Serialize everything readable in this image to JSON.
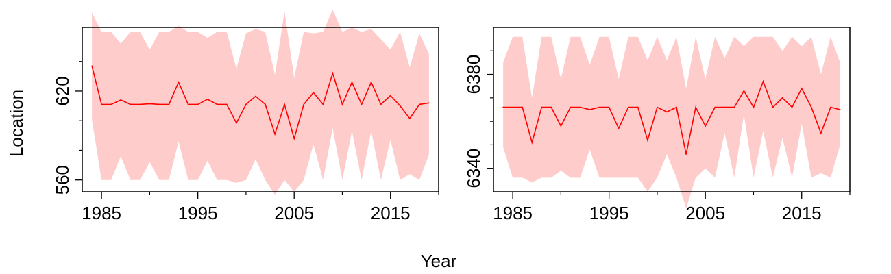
{
  "figure": {
    "ylabel": "Location",
    "xlabel": "Year"
  },
  "colors": {
    "line": "#ff0000",
    "band": "#ffcccc",
    "axis": "#000000"
  },
  "chart_data": [
    {
      "type": "area",
      "panel": "left",
      "xlim": [
        1983,
        2020
      ],
      "ylim": [
        552,
        663
      ],
      "grid": false,
      "x_ticks": [
        1985,
        1995,
        2005,
        2015
      ],
      "x_minor_ticks": [
        1990,
        2000,
        2010,
        2020
      ],
      "x_tick_labels": [
        "1985",
        "1995",
        "2005",
        "2015"
      ],
      "y_ticks": [
        560,
        620
      ],
      "y_minor_ticks": [
        580,
        600,
        640
      ],
      "y_tick_labels": [
        "560",
        "620"
      ],
      "x": [
        1984,
        1985,
        1986,
        1987,
        1988,
        1989,
        1990,
        1991,
        1992,
        1993,
        1994,
        1995,
        1996,
        1997,
        1998,
        1999,
        2000,
        2001,
        2002,
        2003,
        2004,
        2005,
        2006,
        2007,
        2008,
        2009,
        2010,
        2011,
        2012,
        2013,
        2014,
        2015,
        2016,
        2017,
        2018,
        2019
      ],
      "series": [
        {
          "role": "estimate",
          "values": [
            637,
            611,
            611,
            614,
            611,
            611,
            611.5,
            611,
            611,
            626,
            611,
            611,
            614.5,
            611,
            611,
            598.5,
            611,
            616.5,
            611,
            591,
            611,
            588,
            611,
            619,
            611,
            632,
            611,
            626,
            611,
            626,
            611,
            617,
            610,
            601.5,
            611,
            612
          ]
        },
        {
          "role": "upper",
          "values": [
            673,
            660,
            660,
            652,
            660,
            660,
            648,
            660,
            660,
            664,
            660,
            660,
            656,
            660,
            660,
            635,
            659,
            662,
            660,
            631,
            674,
            629,
            660,
            659,
            660,
            675,
            660,
            663,
            660,
            662,
            655,
            648,
            660,
            636,
            659,
            645
          ]
        },
        {
          "role": "lower",
          "values": [
            601,
            560,
            560,
            576,
            560,
            560,
            572,
            560,
            560,
            586,
            560,
            560,
            573,
            560,
            560,
            558,
            560,
            574,
            560,
            550,
            560,
            552,
            560,
            584,
            560,
            595,
            560,
            593,
            560,
            593,
            560,
            587,
            560,
            564,
            560,
            577
          ]
        }
      ]
    },
    {
      "type": "area",
      "panel": "right",
      "xlim": [
        1983,
        2020
      ],
      "ylim": [
        6330,
        6400
      ],
      "grid": false,
      "x_ticks": [
        1985,
        1995,
        2005,
        2015
      ],
      "x_minor_ticks": [
        1990,
        2000,
        2010,
        2020
      ],
      "x_tick_labels": [
        "1985",
        "1995",
        "2005",
        "2015"
      ],
      "y_ticks": [
        6340,
        6380
      ],
      "y_minor_ticks": [
        6350,
        6360,
        6370,
        6390
      ],
      "y_tick_labels": [
        "6340",
        "6380"
      ],
      "x": [
        1984,
        1985,
        1986,
        1987,
        1988,
        1989,
        1990,
        1991,
        1992,
        1993,
        1994,
        1995,
        1996,
        1997,
        1998,
        1999,
        2000,
        2001,
        2002,
        2003,
        2004,
        2005,
        2006,
        2007,
        2008,
        2009,
        2010,
        2011,
        2012,
        2013,
        2014,
        2015,
        2016,
        2017,
        2018,
        2019
      ],
      "series": [
        {
          "role": "estimate",
          "values": [
            6366,
            6366,
            6366,
            6351,
            6366,
            6366,
            6358,
            6366,
            6366,
            6365,
            6366,
            6366,
            6357,
            6366,
            6366,
            6352,
            6366,
            6364,
            6366,
            6346,
            6366,
            6358,
            6366,
            6366,
            6366,
            6373,
            6366,
            6377,
            6366,
            6370,
            6366,
            6374,
            6366,
            6355,
            6366,
            6365
          ]
        },
        {
          "role": "upper",
          "values": [
            6385,
            6396,
            6396,
            6370,
            6396,
            6396,
            6378,
            6396,
            6396,
            6384,
            6396,
            6396,
            6378,
            6396,
            6396,
            6386,
            6396,
            6386,
            6396,
            6374,
            6396,
            6378,
            6396,
            6387,
            6396,
            6392,
            6396,
            6396,
            6396,
            6390,
            6396,
            6392,
            6396,
            6380,
            6396,
            6385
          ]
        },
        {
          "role": "lower",
          "values": [
            6349,
            6336,
            6336,
            6334,
            6336,
            6336,
            6339,
            6336,
            6336,
            6348,
            6336,
            6336,
            6336,
            6336,
            6336,
            6330,
            6336,
            6346,
            6336,
            6323,
            6336,
            6340,
            6336,
            6355,
            6336,
            6363,
            6336,
            6356,
            6336,
            6353,
            6336,
            6359,
            6336,
            6338,
            6336,
            6350
          ]
        }
      ]
    }
  ]
}
